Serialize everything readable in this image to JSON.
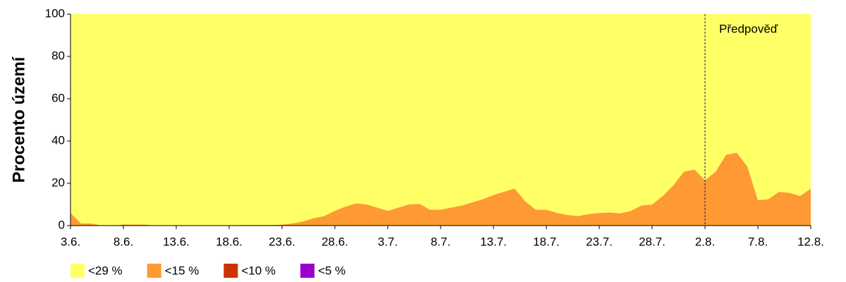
{
  "chart_data": {
    "type": "stacked-area",
    "y_label": "Procento území",
    "categories": [
      "3.6.",
      null,
      null,
      null,
      null,
      "8.6.",
      null,
      null,
      null,
      null,
      "13.6.",
      null,
      null,
      null,
      null,
      "18.6.",
      null,
      null,
      null,
      null,
      "23.6.",
      null,
      null,
      null,
      null,
      "28.6.",
      null,
      null,
      null,
      null,
      "3.7.",
      null,
      null,
      null,
      null,
      "8.7.",
      null,
      null,
      null,
      null,
      "13.7.",
      null,
      null,
      null,
      null,
      "18.7.",
      null,
      null,
      null,
      null,
      "23.7.",
      null,
      null,
      null,
      null,
      "28.7.",
      null,
      null,
      null,
      null,
      "2.8.",
      null,
      null,
      null,
      null,
      "7.8.",
      null,
      null,
      null,
      null,
      "12.8."
    ],
    "series": [
      {
        "name": "<29 %",
        "color": "#ffff66",
        "values": [
          94,
          99,
          99,
          100,
          100,
          99.5,
          99.5,
          99.5,
          100,
          100,
          100,
          100,
          100,
          100,
          100,
          100,
          99.7,
          99.7,
          99.7,
          99.7,
          99.5,
          99,
          98,
          96.5,
          95.5,
          93,
          91,
          89.5,
          90,
          91.5,
          93,
          91.5,
          90,
          89.7,
          92.5,
          92.5,
          91.5,
          90.5,
          89,
          87.5,
          85.5,
          84,
          82.5,
          88.5,
          92.5,
          92.5,
          94,
          95,
          95.5,
          94.5,
          94,
          93.8,
          94.2,
          93,
          90.5,
          90,
          86,
          81,
          74.5,
          73.5,
          78.5,
          74.5,
          66.5,
          65.5,
          72,
          88,
          87.5,
          84,
          84.5,
          86,
          82.5
        ]
      },
      {
        "name": "<15 %",
        "color": "#ff9933",
        "values": [
          6,
          1,
          1,
          0,
          0,
          0.5,
          0.5,
          0.5,
          0,
          0,
          0,
          0,
          0,
          0,
          0,
          0,
          0.3,
          0.3,
          0.3,
          0.3,
          0.5,
          1,
          2,
          3.5,
          4.5,
          7,
          9,
          10.5,
          10,
          8.5,
          7,
          8.5,
          10,
          10.3,
          7.5,
          7.5,
          8.5,
          9.5,
          11,
          12.5,
          14.5,
          16,
          17.5,
          11.5,
          7.5,
          7.5,
          6,
          5,
          4.5,
          5.5,
          6,
          6.2,
          5.8,
          7,
          9.5,
          10,
          14,
          19,
          25.5,
          26.5,
          21.5,
          25.5,
          33.5,
          34.5,
          28,
          12,
          12.5,
          16,
          15.5,
          14,
          17.5
        ]
      },
      {
        "name": "<10 %",
        "color": "#cc3300",
        "values": [
          0,
          0,
          0,
          0,
          0,
          0,
          0,
          0,
          0,
          0,
          0,
          0,
          0,
          0,
          0,
          0,
          0,
          0,
          0,
          0,
          0,
          0,
          0,
          0,
          0,
          0,
          0,
          0,
          0,
          0,
          0,
          0,
          0,
          0,
          0,
          0,
          0,
          0,
          0,
          0,
          0,
          0,
          0,
          0,
          0,
          0,
          0,
          0,
          0,
          0,
          0,
          0,
          0,
          0,
          0,
          0,
          0,
          0,
          0,
          0,
          0,
          0,
          0,
          0,
          0,
          0,
          0,
          0,
          0,
          0,
          0
        ]
      },
      {
        "name": "<5 %",
        "color": "#9900cc",
        "values": [
          0,
          0,
          0,
          0,
          0,
          0,
          0,
          0,
          0,
          0,
          0,
          0,
          0,
          0,
          0,
          0,
          0,
          0,
          0,
          0,
          0,
          0,
          0,
          0,
          0,
          0,
          0,
          0,
          0,
          0,
          0,
          0,
          0,
          0,
          0,
          0,
          0,
          0,
          0,
          0,
          0,
          0,
          0,
          0,
          0,
          0,
          0,
          0,
          0,
          0,
          0,
          0,
          0,
          0,
          0,
          0,
          0,
          0,
          0,
          0,
          0,
          0,
          0,
          0,
          0,
          0,
          0,
          0,
          0,
          0,
          0
        ]
      }
    ],
    "ylim": [
      0,
      100
    ],
    "yticks": [
      0,
      20,
      40,
      60,
      80,
      100
    ],
    "annotation": {
      "text": "Předpověď",
      "x": "2.8."
    },
    "legend": "bottom"
  }
}
